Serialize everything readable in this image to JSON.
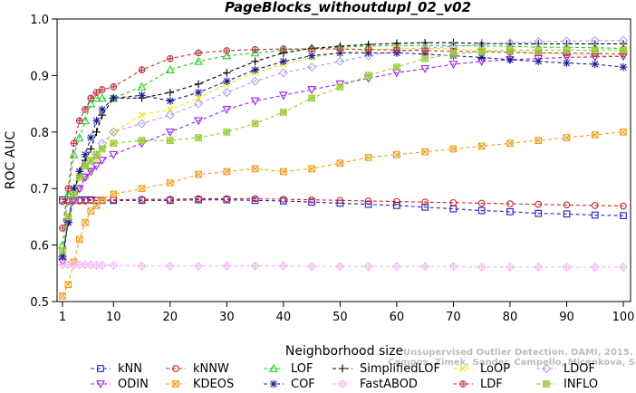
{
  "chart_data": {
    "type": "line",
    "title": "PageBlocks_withoutdupl_02_v02",
    "xlabel": "Neighborhood size",
    "ylabel": "ROC AUC",
    "xlim": [
      1,
      100
    ],
    "ylim": [
      0.5,
      1.0
    ],
    "xticks": [
      1,
      10,
      20,
      30,
      40,
      50,
      60,
      70,
      80,
      90,
      100
    ],
    "yticks": [
      0.5,
      0.6,
      0.7,
      0.8,
      0.9,
      1.0
    ],
    "x": [
      1,
      2,
      3,
      4,
      5,
      6,
      7,
      8,
      10,
      15,
      20,
      25,
      30,
      35,
      40,
      45,
      50,
      55,
      60,
      65,
      70,
      75,
      80,
      85,
      90,
      95,
      100
    ],
    "series": [
      {
        "name": "kNN",
        "color": "#1f1fcc",
        "marker": "square",
        "dash": "4,3",
        "values": [
          0.68,
          0.68,
          0.68,
          0.68,
          0.68,
          0.68,
          0.679,
          0.679,
          0.679,
          0.679,
          0.679,
          0.68,
          0.68,
          0.679,
          0.678,
          0.676,
          0.674,
          0.672,
          0.67,
          0.667,
          0.664,
          0.661,
          0.659,
          0.656,
          0.655,
          0.653,
          0.652
        ]
      },
      {
        "name": "kNNW",
        "color": "#cc2222",
        "marker": "circle",
        "dash": "4,3",
        "values": [
          0.677,
          0.677,
          0.678,
          0.678,
          0.678,
          0.679,
          0.679,
          0.679,
          0.68,
          0.681,
          0.681,
          0.682,
          0.682,
          0.682,
          0.681,
          0.68,
          0.679,
          0.678,
          0.677,
          0.676,
          0.675,
          0.674,
          0.673,
          0.672,
          0.671,
          0.67,
          0.669
        ]
      },
      {
        "name": "LOF",
        "color": "#22cc22",
        "marker": "triangle",
        "dash": "4,3",
        "values": [
          0.6,
          0.69,
          0.76,
          0.79,
          0.82,
          0.85,
          0.86,
          0.86,
          0.86,
          0.88,
          0.91,
          0.925,
          0.935,
          0.94,
          0.945,
          0.948,
          0.95,
          0.952,
          0.953,
          0.953,
          0.953,
          0.952,
          0.952,
          0.95,
          0.95,
          0.949,
          0.948
        ]
      },
      {
        "name": "SimplifiedLOF",
        "color": "#000000",
        "marker": "plus",
        "dash": "4,3",
        "values": [
          0.575,
          0.645,
          0.69,
          0.73,
          0.75,
          0.77,
          0.8,
          0.83,
          0.86,
          0.86,
          0.87,
          0.885,
          0.905,
          0.925,
          0.94,
          0.948,
          0.952,
          0.955,
          0.957,
          0.958,
          0.958,
          0.957,
          0.956,
          0.956,
          0.956,
          0.956,
          0.956
        ]
      },
      {
        "name": "LoOP",
        "color": "#e8e800",
        "marker": "x",
        "dash": "4,3",
        "values": [
          0.58,
          0.64,
          0.68,
          0.7,
          0.72,
          0.73,
          0.75,
          0.77,
          0.8,
          0.83,
          0.84,
          0.86,
          0.885,
          0.905,
          0.92,
          0.932,
          0.94,
          0.945,
          0.948,
          0.948,
          0.947,
          0.945,
          0.943,
          0.94,
          0.938,
          0.935,
          0.935
        ]
      },
      {
        "name": "LDOF",
        "color": "#a6a6ee",
        "marker": "diamond",
        "dash": "4,3",
        "values": [
          0.58,
          0.64,
          0.68,
          0.7,
          0.72,
          0.74,
          0.76,
          0.78,
          0.8,
          0.815,
          0.83,
          0.85,
          0.87,
          0.89,
          0.905,
          0.915,
          0.925,
          0.935,
          0.942,
          0.948,
          0.952,
          0.955,
          0.958,
          0.96,
          0.961,
          0.962,
          0.962
        ]
      },
      {
        "name": "ODIN",
        "color": "#9a22ee",
        "marker": "triangle-down",
        "dash": "4,3",
        "values": [
          0.57,
          0.64,
          0.68,
          0.7,
          0.72,
          0.73,
          0.74,
          0.75,
          0.76,
          0.78,
          0.8,
          0.82,
          0.84,
          0.855,
          0.865,
          0.875,
          0.885,
          0.895,
          0.905,
          0.912,
          0.92,
          0.925,
          0.928,
          0.93,
          0.932,
          0.933,
          0.934
        ]
      },
      {
        "name": "KDEOS",
        "color": "#f0a020",
        "marker": "square-x",
        "dash": "4,3",
        "values": [
          0.51,
          0.53,
          0.57,
          0.61,
          0.64,
          0.66,
          0.67,
          0.68,
          0.69,
          0.7,
          0.71,
          0.725,
          0.73,
          0.735,
          0.73,
          0.735,
          0.745,
          0.755,
          0.76,
          0.765,
          0.77,
          0.775,
          0.78,
          0.785,
          0.79,
          0.795,
          0.8
        ]
      },
      {
        "name": "COF",
        "color": "#1a1a8c",
        "marker": "asterisk",
        "dash": "4,3",
        "values": [
          0.58,
          0.64,
          0.7,
          0.73,
          0.76,
          0.79,
          0.82,
          0.84,
          0.86,
          0.865,
          0.855,
          0.87,
          0.89,
          0.91,
          0.925,
          0.935,
          0.94,
          0.94,
          0.94,
          0.938,
          0.935,
          0.932,
          0.928,
          0.925,
          0.922,
          0.92,
          0.915
        ]
      },
      {
        "name": "FastABOD",
        "color": "#f4b8f4",
        "marker": "diamond-plus",
        "dash": "4,3",
        "values": [
          0.565,
          0.565,
          0.565,
          0.565,
          0.565,
          0.565,
          0.564,
          0.564,
          0.564,
          0.563,
          0.563,
          0.563,
          0.563,
          0.563,
          0.563,
          0.562,
          0.562,
          0.562,
          0.562,
          0.562,
          0.562,
          0.561,
          0.561,
          0.561,
          0.561,
          0.561,
          0.561
        ]
      },
      {
        "name": "LDF",
        "color": "#bb3344",
        "marker": "circle-plus",
        "dash": "4,3",
        "values": [
          0.63,
          0.7,
          0.78,
          0.82,
          0.84,
          0.86,
          0.87,
          0.875,
          0.88,
          0.91,
          0.93,
          0.94,
          0.944,
          0.946,
          0.947,
          0.947,
          0.947,
          0.946,
          0.945,
          0.944,
          0.943,
          0.942,
          0.941,
          0.94,
          0.94,
          0.939,
          0.938
        ]
      },
      {
        "name": "INFLO",
        "color": "#99cc33",
        "marker": "square-star",
        "dash": "4,3",
        "values": [
          0.59,
          0.65,
          0.69,
          0.72,
          0.74,
          0.75,
          0.76,
          0.77,
          0.78,
          0.785,
          0.785,
          0.79,
          0.8,
          0.815,
          0.835,
          0.86,
          0.88,
          0.9,
          0.915,
          0.93,
          0.938,
          0.942,
          0.945,
          0.945,
          0.945,
          0.945,
          0.945
        ]
      }
    ],
    "legend_placement": "bottom",
    "grid": false
  },
  "credit": {
    "line1": "Unsupervised Outlier Detection. DAMI, 2015.",
    "line2": "Campos, Zimek, Sander, Campello, Micenkova, Schubert, Assent, Houle"
  }
}
